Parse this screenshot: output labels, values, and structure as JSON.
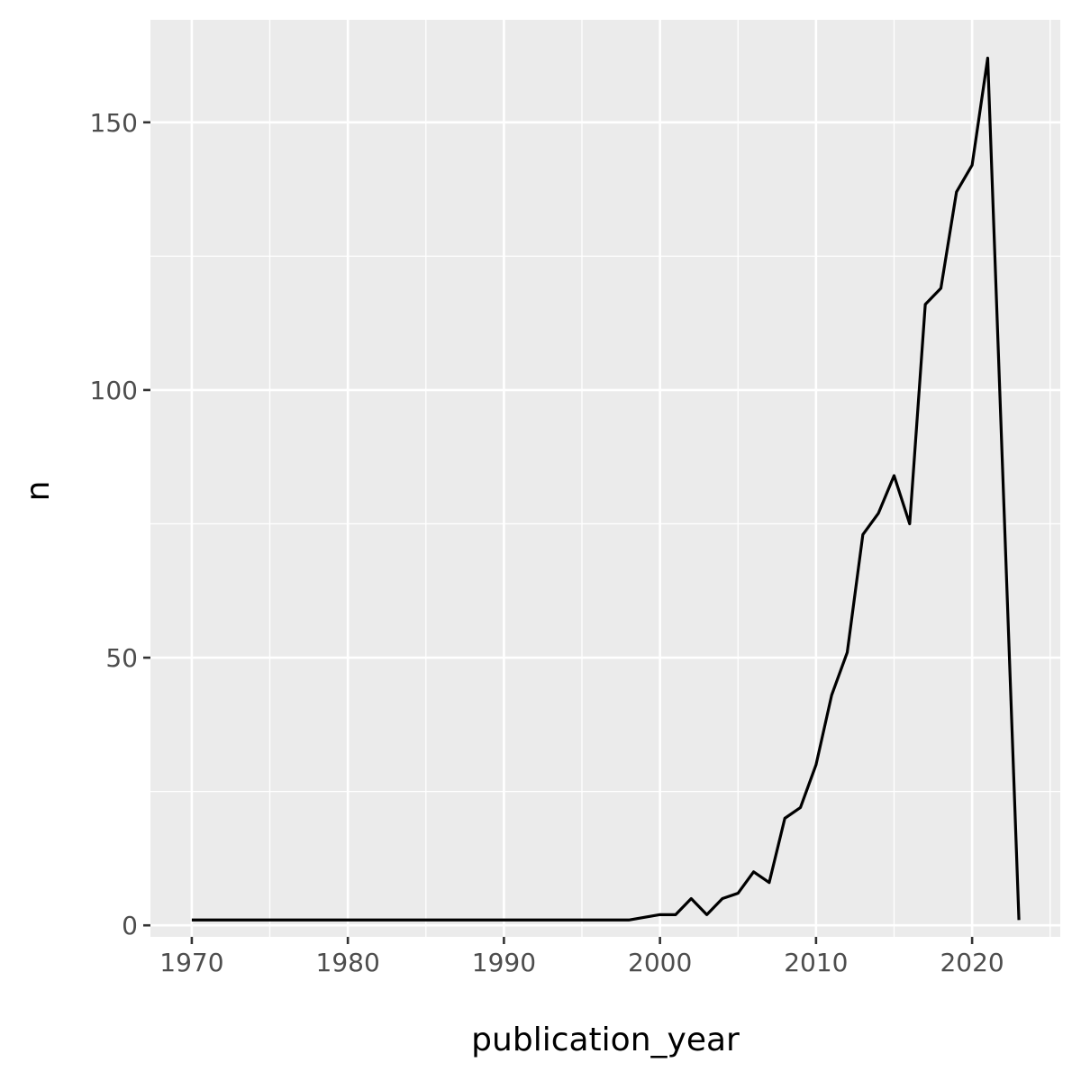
{
  "chart_data": {
    "type": "line",
    "title": "",
    "xlabel": "publication_year",
    "ylabel": "n",
    "xlim": [
      1967.35,
      1925.65
    ],
    "ylim": [
      -2.15,
      169.15
    ],
    "x_ticks": [
      1970,
      1980,
      1990,
      2000,
      2010,
      2020
    ],
    "x_minor_ticks": [
      1975,
      1985,
      1995,
      2005,
      2015,
      2025
    ],
    "y_ticks": [
      0,
      50,
      100,
      150
    ],
    "y_minor_ticks": [
      25,
      75,
      125
    ],
    "grid": true,
    "legend": "none",
    "colors": {
      "panel": "#ebebeb",
      "line": "#000000",
      "grid": "#ffffff",
      "tick_text": "#4d4d4d"
    },
    "series": [
      {
        "x": [
          1970,
          1998,
          2000,
          2001,
          2002,
          2003,
          2004,
          2005,
          2006,
          2007,
          2008,
          2009,
          2010,
          2011,
          2012,
          2013,
          2014,
          2015,
          2016,
          2017,
          2018,
          2019,
          2020,
          2021,
          2023
        ],
        "values": [
          1,
          1,
          2,
          2,
          5,
          2,
          5,
          6,
          10,
          8,
          20,
          22,
          30,
          43,
          51,
          73,
          77,
          84,
          75,
          116,
          119,
          137,
          142,
          162,
          1
        ]
      }
    ]
  }
}
